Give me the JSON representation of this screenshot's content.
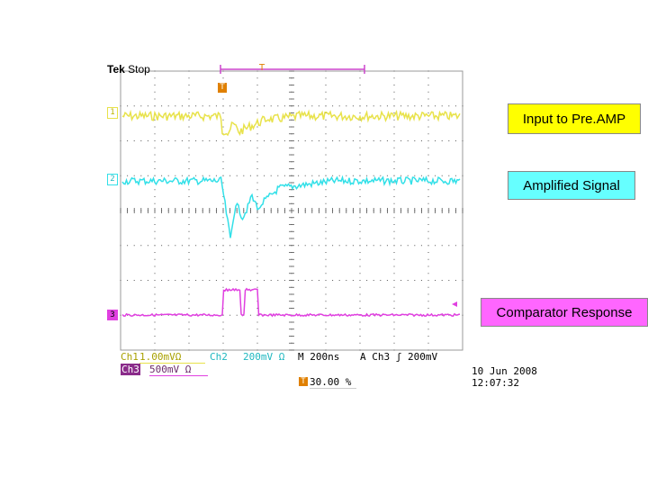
{
  "header": {
    "brand": "Tek",
    "run_state": "Stop",
    "trigger_marker": "T"
  },
  "channels": [
    {
      "id": "1",
      "marker": "1",
      "color": "#e8e24a",
      "label": "Input to Pre.AMP",
      "callout_bg": "#ffff00"
    },
    {
      "id": "2",
      "marker": "2",
      "color": "#33e0e8",
      "label": "Amplified Signal",
      "callout_bg": "#66ffff"
    },
    {
      "id": "3",
      "marker": "3",
      "color": "#e040e0",
      "label": "Comparator Response",
      "callout_bg": "#ff66ff"
    }
  ],
  "readout": {
    "ch1_name": "Ch1",
    "ch1_scale": "1.00mVΩ",
    "ch2_name": "Ch2",
    "ch2_scale": "200mV Ω",
    "timebase": "M 200ns",
    "trigger": "A  Ch3 ʃ  200mV",
    "ch3_name": "Ch3",
    "ch3_scale": "500mV Ω",
    "trigger_pos_marker": "T",
    "trigger_pos": "30.00 %",
    "date": "10 Jun  2008",
    "time": "12:07:32"
  },
  "colors": {
    "grid": "#000000",
    "background": "#ffffff"
  }
}
